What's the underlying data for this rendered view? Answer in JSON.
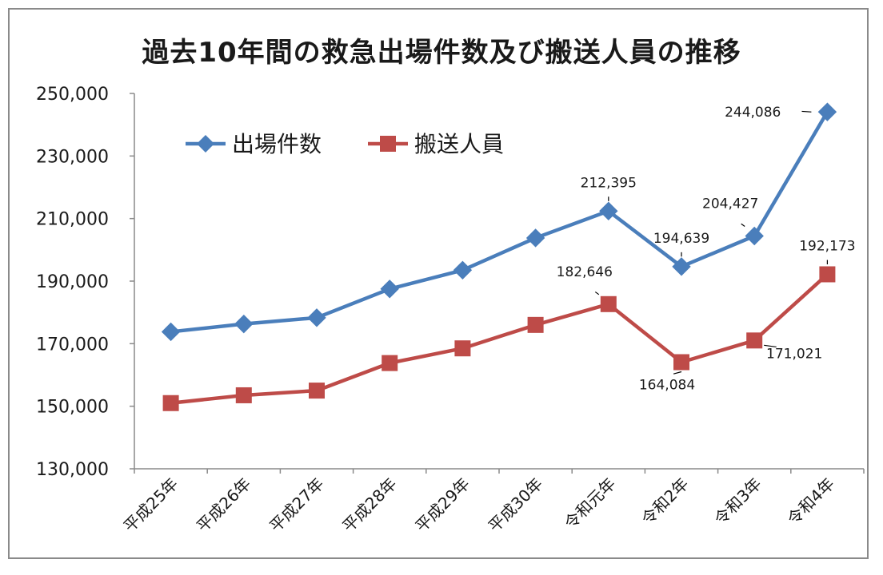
{
  "chart_data": {
    "type": "line",
    "title": "過去10年間の救急出場件数及び搬送人員の推移",
    "categories": [
      "平成25年",
      "平成26年",
      "平成27年",
      "平成28年",
      "平成29年",
      "平成30年",
      "令和元年",
      "令和2年",
      "令和3年",
      "令和4年"
    ],
    "series": [
      {
        "name": "出場件数",
        "color": "#4a7ebb",
        "marker": "diamond",
        "values": [
          173800,
          176300,
          178300,
          187500,
          193500,
          203800,
          212395,
          194639,
          204427,
          244086
        ]
      },
      {
        "name": "搬送人員",
        "color": "#be4b48",
        "marker": "square",
        "values": [
          151000,
          153500,
          155000,
          163800,
          168500,
          176000,
          182646,
          164084,
          171021,
          192173
        ]
      }
    ],
    "data_labels": [
      {
        "series": 0,
        "index": 6,
        "text": "212,395",
        "pos": "above"
      },
      {
        "series": 0,
        "index": 7,
        "text": "194,639",
        "pos": "above"
      },
      {
        "series": 0,
        "index": 8,
        "text": "204,427",
        "pos": "above-left"
      },
      {
        "series": 0,
        "index": 9,
        "text": "244,086",
        "pos": "left"
      },
      {
        "series": 1,
        "index": 6,
        "text": "182,646",
        "pos": "above-left"
      },
      {
        "series": 1,
        "index": 7,
        "text": "164,084",
        "pos": "below"
      },
      {
        "series": 1,
        "index": 8,
        "text": "171,021",
        "pos": "right-below"
      },
      {
        "series": 1,
        "index": 9,
        "text": "192,173",
        "pos": "above"
      }
    ],
    "yticks": [
      "130,000",
      "150,000",
      "170,000",
      "190,000",
      "210,000",
      "230,000",
      "250,000"
    ],
    "ytick_values": [
      130000,
      150000,
      170000,
      190000,
      210000,
      230000,
      250000
    ],
    "ylim": [
      130000,
      250000
    ],
    "xlabel": "",
    "ylabel": "",
    "grid": false,
    "legend_position": "top-left"
  }
}
